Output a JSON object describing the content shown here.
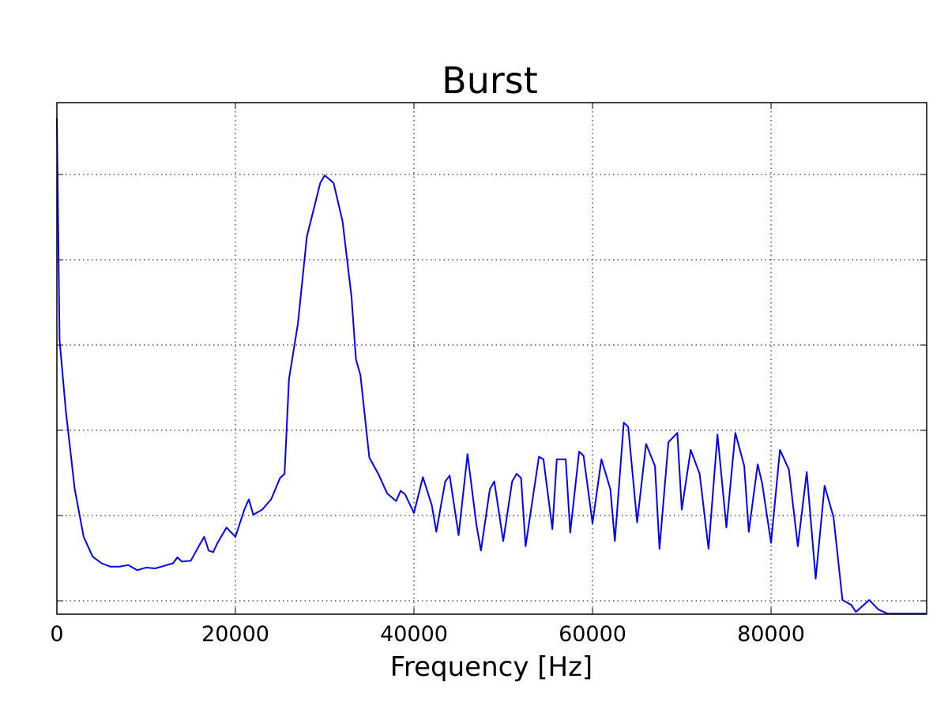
{
  "chart_data": {
    "type": "line",
    "title": "Burst",
    "x_label": "Frequency [Hz]",
    "x": [
      0,
      300,
      1000,
      2000,
      3000,
      4000,
      5000,
      6000,
      7000,
      8000,
      9000,
      10000,
      11000,
      12000,
      13000,
      13500,
      14000,
      15000,
      16000,
      16500,
      17000,
      17500,
      18000,
      19000,
      20000,
      21000,
      21500,
      22000,
      23000,
      24000,
      25000,
      25500,
      26000,
      27000,
      28000,
      29000,
      29500,
      30000,
      31000,
      32000,
      33000,
      33500,
      34000,
      35000,
      36000,
      37000,
      38000,
      38500,
      39000,
      40000,
      41000,
      42000,
      42500,
      43500,
      44000,
      45000,
      46000,
      47000,
      47500,
      48500,
      49000,
      50000,
      51000,
      51500,
      52000,
      52500,
      54000,
      54500,
      55500,
      56000,
      57000,
      57500,
      58500,
      59000,
      60000,
      61000,
      62000,
      62500,
      63500,
      64000,
      65000,
      66000,
      67000,
      67500,
      68500,
      69500,
      70000,
      71000,
      72000,
      73000,
      74000,
      75000,
      76000,
      77000,
      77500,
      78500,
      79000,
      80000,
      81000,
      82000,
      83000,
      84000,
      85000,
      86000,
      87000,
      88000,
      89000,
      89500,
      91000,
      92000,
      93000,
      97430
    ],
    "series": [
      {
        "color": "#0000ff",
        "values": [
          5.66,
          3.06,
          2.23,
          1.31,
          0.75,
          0.52,
          0.44,
          0.4,
          0.4,
          0.42,
          0.36,
          0.39,
          0.38,
          0.41,
          0.44,
          0.51,
          0.46,
          0.47,
          0.66,
          0.75,
          0.59,
          0.57,
          0.68,
          0.86,
          0.75,
          1.07,
          1.19,
          1.01,
          1.07,
          1.19,
          1.44,
          1.49,
          2.6,
          3.25,
          4.27,
          4.69,
          4.9,
          4.99,
          4.9,
          4.45,
          3.57,
          2.83,
          2.65,
          1.68,
          1.49,
          1.26,
          1.17,
          1.29,
          1.25,
          1.03,
          1.45,
          1.12,
          0.81,
          1.4,
          1.47,
          0.77,
          1.72,
          0.89,
          0.59,
          1.31,
          1.4,
          0.7,
          1.4,
          1.49,
          1.44,
          0.64,
          1.69,
          1.66,
          0.84,
          1.66,
          1.66,
          0.8,
          1.75,
          1.7,
          0.91,
          1.66,
          1.31,
          0.7,
          2.09,
          2.04,
          0.92,
          1.84,
          1.58,
          0.61,
          1.86,
          1.97,
          1.07,
          1.77,
          1.49,
          0.61,
          1.95,
          0.86,
          1.97,
          1.58,
          0.81,
          1.6,
          1.38,
          0.68,
          1.77,
          1.54,
          0.64,
          1.51,
          0.26,
          1.35,
          0.98,
          0.01,
          -0.05,
          -0.13,
          0.01,
          -0.1,
          -0.15,
          -0.15
        ]
      }
    ],
    "xlim": [
      0,
      97430
    ],
    "xticks": [
      0,
      20000,
      40000,
      60000,
      80000
    ],
    "ylim": [
      -0.157,
      5.843
    ],
    "yticks": [
      0,
      1,
      2,
      3,
      4,
      5
    ],
    "grid": true
  }
}
